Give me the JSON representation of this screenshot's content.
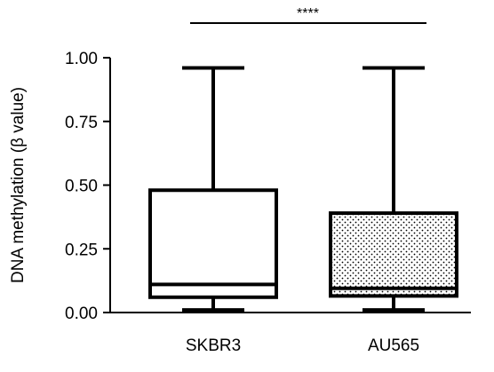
{
  "chart_data": {
    "type": "box",
    "title": "",
    "xlabel": "",
    "ylabel": "DNA methylation (β value)",
    "ylim": [
      0,
      1.0
    ],
    "y_ticks": [
      "0.00",
      "0.25",
      "0.50",
      "0.75",
      "1.00"
    ],
    "y_tick_values": [
      0,
      0.25,
      0.5,
      0.75,
      1.0
    ],
    "categories": [
      "SKBR3",
      "AU565"
    ],
    "boxes": [
      {
        "category": "SKBR3",
        "min": 0.01,
        "q1": 0.06,
        "median": 0.11,
        "q3": 0.48,
        "max": 0.96,
        "fill": "none"
      },
      {
        "category": "AU565",
        "min": 0.01,
        "q1": 0.065,
        "median": 0.095,
        "q3": 0.39,
        "max": 0.96,
        "fill": "dotted"
      }
    ],
    "significance": {
      "label": "****",
      "between": [
        "SKBR3",
        "AU565"
      ]
    },
    "grid": false,
    "legend": "none"
  }
}
